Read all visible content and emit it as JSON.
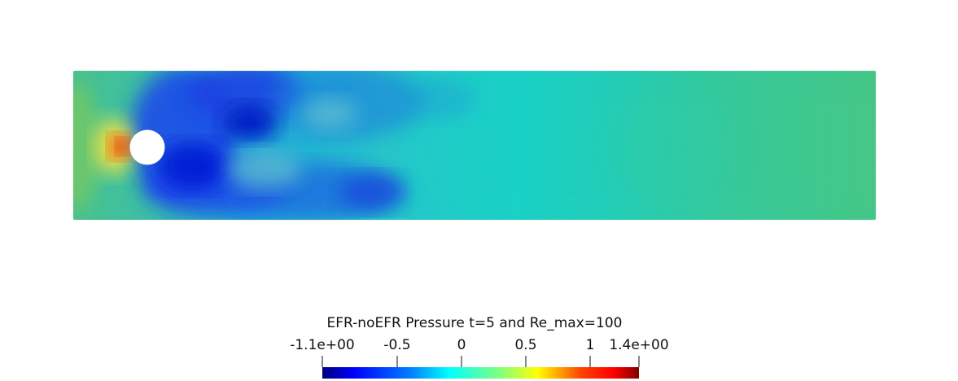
{
  "figure": {
    "colorbar_title": "EFR-noEFR Pressure t=5   and Re_max=100",
    "colorbar_min_label": "-1.1e+00",
    "colorbar_max_label": "1.4e+00",
    "colorbar_ticks": [
      "-0.5",
      "0",
      "0.5",
      "1"
    ],
    "colormap": "jet",
    "colors": {
      "background": "#ffffff",
      "obstacle": "#ffffff",
      "domain_base": "#2ec8a8"
    }
  }
}
